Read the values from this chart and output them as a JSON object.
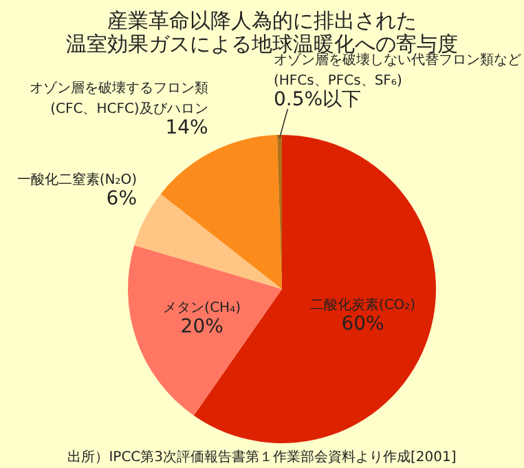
{
  "chart_data": {
    "type": "pie",
    "title": "産業革命以降人為的に排出された温室効果ガスによる地球温暖化への寄与度",
    "categories": [
      "二酸化炭素(CO₂)",
      "メタン(CH₄)",
      "一酸化二窒素(N₂O)",
      "オゾン層を破壊するフロン類\n(CFC、HCFC)及びハロン",
      "オゾン層を破壊しない代替フロン類など\n(HFCs、PFCs、SF₆)"
    ],
    "values": [
      60,
      20,
      6,
      14,
      0.5
    ],
    "colors": [
      "#dd2200",
      "#ff7763",
      "#ffc585",
      "#fb8c1c",
      "#b0701a"
    ],
    "value_labels": [
      "60%",
      "20%",
      "6%",
      "14%",
      "0.5%以下"
    ],
    "annotations": [
      "出所）IPCC第3次評価報告書第１作業部会資料より作成[2001]"
    ]
  }
}
